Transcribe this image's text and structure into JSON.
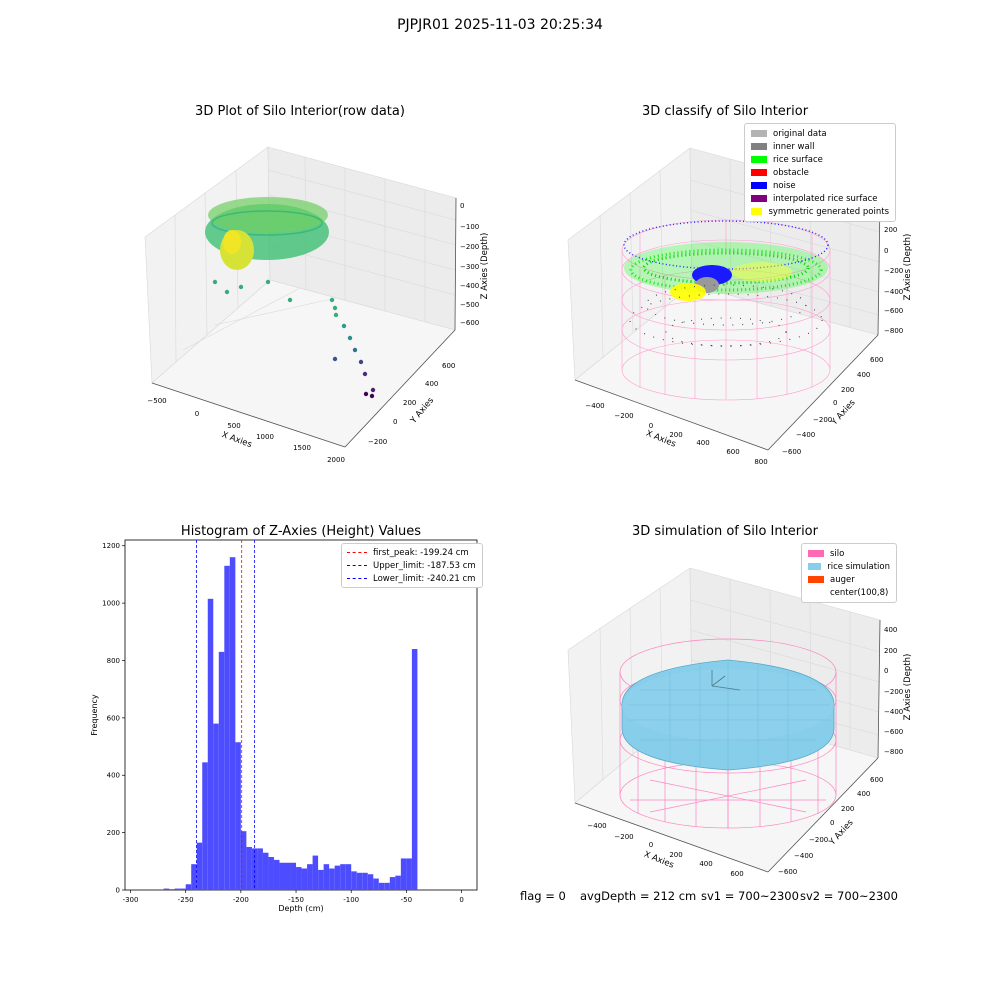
{
  "suptitle": "PJPJR01 2025-11-03 20:25:34",
  "panel1": {
    "title": "3D Plot of Silo Interior(row data)",
    "xlabel": "X Axies",
    "ylabel": "Y Axies",
    "zlabel": "Z Axies (Depth)",
    "xticks": [
      "−500",
      "0",
      "500",
      "1000",
      "1500",
      "2000"
    ],
    "yticks": [
      "−200",
      "0",
      "200",
      "400",
      "600"
    ],
    "zticks": [
      "0",
      "−100",
      "−200",
      "−300",
      "−400",
      "−500",
      "−600"
    ]
  },
  "panel2": {
    "title": "3D classify of Silo Interior",
    "xlabel": "X Axies",
    "ylabel": "Y Axies",
    "zlabel": "Z Axies (Depth)",
    "xticks": [
      "−400",
      "−200",
      "0",
      "200",
      "400",
      "600",
      "800"
    ],
    "yticks": [
      "−600",
      "−400",
      "−200",
      "0",
      "200",
      "400",
      "600"
    ],
    "zticks": [
      "200",
      "0",
      "−200",
      "−400",
      "−600",
      "−800"
    ],
    "legend": [
      {
        "label": "original data",
        "color": "#b3b3b3"
      },
      {
        "label": "inner wall",
        "color": "#808080"
      },
      {
        "label": "rice surface",
        "color": "#00ff00"
      },
      {
        "label": "obstacle",
        "color": "#ff0000"
      },
      {
        "label": "noise",
        "color": "#0000ff"
      },
      {
        "label": "interpolated rice surface",
        "color": "#800080"
      },
      {
        "label": "symmetric generated points",
        "color": "#ffff00"
      }
    ],
    "legend_clip": "00"
  },
  "panel4": {
    "title": "3D simulation of Silo Interior",
    "xlabel": "X Axies",
    "ylabel": "Y Axies",
    "zlabel": "Z Axies (Depth)",
    "xticks": [
      "−400",
      "−200",
      "0",
      "200",
      "400",
      "600"
    ],
    "yticks": [
      "−600",
      "−400",
      "−200",
      "0",
      "200",
      "400",
      "600"
    ],
    "zticks": [
      "400",
      "200",
      "0",
      "−200",
      "−400",
      "−600",
      "−800"
    ],
    "legend": [
      {
        "label": "silo",
        "color": "#ff69b4"
      },
      {
        "label": "rice simulation",
        "color": "#87ceeb"
      },
      {
        "label": "auger",
        "color": "#ff4500"
      },
      {
        "label": "center(100,8)",
        "color": "none"
      }
    ]
  },
  "status": {
    "flag": "flag = 0",
    "avg": "avgDepth = 212 cm",
    "sv1": "sv1 = 700~2300",
    "sv2": "sv2 = 700~2300"
  },
  "chart_data": [
    {
      "type": "bar",
      "title": "Histogram of Z-Axies (Height) Values",
      "xlabel": "Depth (cm)",
      "ylabel": "Frequency",
      "xlim": [
        -305,
        14
      ],
      "ylim": [
        0,
        1220
      ],
      "xticks": [
        -300,
        -250,
        -200,
        -150,
        -100,
        -50,
        0
      ],
      "yticks": [
        0,
        200,
        400,
        600,
        800,
        1000,
        1200
      ],
      "bin_start": -270,
      "bin_width": 5,
      "color": "#4d4dff",
      "values": [
        5,
        3,
        5,
        5,
        20,
        90,
        165,
        445,
        1015,
        580,
        830,
        1130,
        1160,
        515,
        205,
        150,
        145,
        145,
        130,
        115,
        105,
        95,
        95,
        95,
        80,
        75,
        90,
        120,
        70,
        90,
        75,
        85,
        90,
        90,
        65,
        60,
        60,
        55,
        40,
        25,
        25,
        45,
        50,
        110,
        110,
        840
      ],
      "lines": [
        {
          "name": "first_peak: -199.24 cm",
          "x": -199.24,
          "color": "#ff0000"
        },
        {
          "name": "Upper_limit: -187.53 cm",
          "x": -187.53,
          "color": "#0000ff"
        },
        {
          "name": "Lower_limit: -240.21 cm",
          "x": -240.21,
          "color": "#0000ff"
        }
      ],
      "legend_position": "top-right"
    }
  ]
}
